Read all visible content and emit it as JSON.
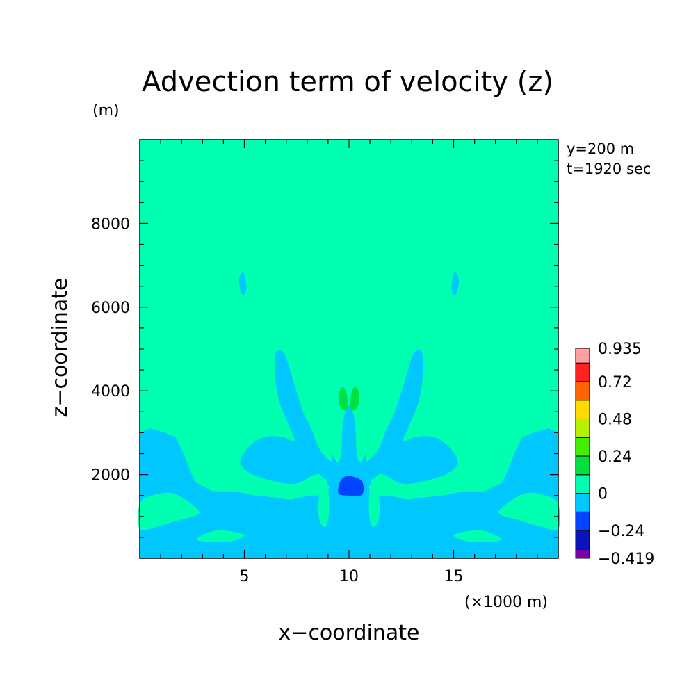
{
  "chart_data": {
    "type": "heatmap",
    "title": "Advection term of velocity (z)",
    "xlabel": "x−coordinate",
    "ylabel": "z−coordinate",
    "x_unit": "(×1000 m)",
    "y_unit": "(m)",
    "xlim": [
      0,
      20
    ],
    "ylim": [
      0,
      10000
    ],
    "x_ticks": [
      5,
      10,
      15
    ],
    "x_tick_labels": [
      "5",
      "10",
      "15"
    ],
    "y_ticks": [
      2000,
      4000,
      6000,
      8000
    ],
    "y_tick_labels": [
      "2000",
      "4000",
      "6000",
      "8000"
    ],
    "annotations": [
      "y=200 m",
      "t=1920 sec"
    ],
    "colorbar": {
      "levels": [
        -0.419,
        -0.36,
        -0.24,
        -0.12,
        0,
        0.12,
        0.24,
        0.36,
        0.48,
        0.6,
        0.72,
        0.84,
        0.935
      ],
      "colors": [
        "#7a00a8",
        "#0a14b8",
        "#0044ff",
        "#00c8ff",
        "#00ffb0",
        "#00e040",
        "#44ee00",
        "#b8f000",
        "#ffdc00",
        "#ff6400",
        "#ff2020",
        "#ffa0a0"
      ],
      "tick_labels": [
        "−0.419",
        "−0.24",
        "0",
        "0.24",
        "0.48",
        "0.72",
        "0.935"
      ],
      "tick_values": [
        -0.419,
        -0.24,
        0,
        0.24,
        0.48,
        0.72,
        0.935
      ]
    },
    "background_level_color": "#00ffb0",
    "regions": [
      {
        "name": "region-lower-band",
        "value_range": [
          -0.12,
          0
        ],
        "color": "#00c8ff",
        "points": [
          [
            0,
            0
          ],
          [
            20,
            0
          ],
          [
            20,
            3.0
          ],
          [
            19.5,
            3.1
          ],
          [
            18.8,
            3.0
          ],
          [
            18.3,
            2.9
          ],
          [
            17.9,
            2.5
          ],
          [
            17.6,
            2.1
          ],
          [
            17.3,
            1.8
          ],
          [
            16.5,
            1.6
          ],
          [
            15.5,
            1.6
          ],
          [
            14.5,
            1.5
          ],
          [
            13.5,
            1.45
          ],
          [
            12.8,
            1.4
          ],
          [
            11.9,
            1.5
          ],
          [
            11.3,
            1.5
          ],
          [
            10.9,
            1.7
          ],
          [
            10.8,
            2.5
          ],
          [
            10.5,
            2.2
          ],
          [
            10.2,
            2.2
          ],
          [
            9.5,
            2.2
          ],
          [
            9.2,
            2.5
          ],
          [
            9.1,
            1.7
          ],
          [
            8.7,
            1.5
          ],
          [
            8.1,
            1.5
          ],
          [
            7.2,
            1.4
          ],
          [
            6.5,
            1.45
          ],
          [
            5.5,
            1.5
          ],
          [
            4.5,
            1.6
          ],
          [
            3.5,
            1.6
          ],
          [
            2.7,
            1.8
          ],
          [
            2.4,
            2.1
          ],
          [
            2.1,
            2.5
          ],
          [
            1.7,
            2.9
          ],
          [
            1.2,
            3.0
          ],
          [
            0.5,
            3.1
          ],
          [
            0,
            3.0
          ]
        ]
      },
      {
        "name": "region-central-plume",
        "value_range": [
          -0.12,
          0
        ],
        "color": "#00c8ff",
        "points": [
          [
            6.5,
            4.9
          ],
          [
            6.9,
            4.9
          ],
          [
            7.3,
            4.3
          ],
          [
            7.8,
            3.5
          ],
          [
            8.2,
            3.1
          ],
          [
            8.6,
            2.6
          ],
          [
            9.2,
            2.3
          ],
          [
            9.6,
            2.4
          ],
          [
            9.7,
            3.2
          ],
          [
            9.9,
            3.6
          ],
          [
            10.1,
            3.6
          ],
          [
            10.3,
            3.2
          ],
          [
            10.4,
            2.4
          ],
          [
            10.8,
            2.3
          ],
          [
            11.4,
            2.6
          ],
          [
            11.8,
            3.1
          ],
          [
            12.2,
            3.5
          ],
          [
            12.7,
            4.3
          ],
          [
            13.1,
            4.9
          ],
          [
            13.5,
            4.9
          ],
          [
            13.5,
            4.2
          ],
          [
            13.3,
            3.7
          ],
          [
            12.9,
            3.2
          ],
          [
            12.6,
            2.8
          ],
          [
            13.2,
            2.9
          ],
          [
            14.0,
            2.9
          ],
          [
            14.7,
            2.7
          ],
          [
            15.2,
            2.3
          ],
          [
            14.6,
            2.0
          ],
          [
            13.2,
            1.8
          ],
          [
            12.4,
            1.8
          ],
          [
            11.4,
            2.0
          ],
          [
            10.6,
            1.4
          ],
          [
            10.2,
            1.2
          ],
          [
            9.8,
            1.2
          ],
          [
            9.4,
            1.4
          ],
          [
            8.6,
            2.0
          ],
          [
            7.6,
            1.8
          ],
          [
            6.8,
            1.8
          ],
          [
            5.4,
            2.0
          ],
          [
            4.8,
            2.3
          ],
          [
            5.3,
            2.7
          ],
          [
            6.0,
            2.9
          ],
          [
            6.8,
            2.9
          ],
          [
            7.4,
            2.8
          ],
          [
            7.1,
            3.2
          ],
          [
            6.7,
            3.7
          ],
          [
            6.5,
            4.2
          ]
        ]
      },
      {
        "name": "region-upper-left-spot",
        "value_range": [
          -0.12,
          0
        ],
        "color": "#00c8ff",
        "points": [
          [
            4.75,
            6.65
          ],
          [
            4.95,
            6.85
          ],
          [
            5.1,
            6.5
          ],
          [
            5.0,
            6.3
          ],
          [
            4.85,
            6.35
          ]
        ]
      },
      {
        "name": "region-upper-right-spot",
        "value_range": [
          -0.12,
          0
        ],
        "color": "#00c8ff",
        "points": [
          [
            15.25,
            6.65
          ],
          [
            15.05,
            6.85
          ],
          [
            14.9,
            6.5
          ],
          [
            15.0,
            6.3
          ],
          [
            15.15,
            6.35
          ]
        ]
      },
      {
        "name": "region-green-left",
        "value_range": [
          0.12,
          0.24
        ],
        "color": "#00e040",
        "points": [
          [
            9.5,
            3.9
          ],
          [
            9.7,
            4.1
          ],
          [
            9.9,
            3.9
          ],
          [
            9.9,
            3.55
          ],
          [
            9.6,
            3.6
          ]
        ]
      },
      {
        "name": "region-green-right",
        "value_range": [
          0.12,
          0.24
        ],
        "color": "#00e040",
        "points": [
          [
            10.5,
            3.9
          ],
          [
            10.3,
            4.1
          ],
          [
            10.1,
            3.9
          ],
          [
            10.1,
            3.55
          ],
          [
            10.4,
            3.6
          ]
        ]
      },
      {
        "name": "region-negative-core",
        "value_range": [
          -0.36,
          -0.24
        ],
        "color": "#0044ff",
        "points": [
          [
            9.55,
            1.8
          ],
          [
            9.8,
            1.95
          ],
          [
            10.2,
            1.95
          ],
          [
            10.6,
            1.85
          ],
          [
            10.7,
            1.65
          ],
          [
            10.55,
            1.5
          ],
          [
            9.9,
            1.5
          ],
          [
            9.5,
            1.55
          ]
        ]
      },
      {
        "name": "region-positive-left-band",
        "value_range": [
          0,
          0.12
        ],
        "color": "#00ffb0",
        "points": [
          [
            0,
            1.3
          ],
          [
            0.6,
            1.5
          ],
          [
            1.6,
            1.55
          ],
          [
            2.6,
            1.25
          ],
          [
            2.8,
            1.05
          ],
          [
            1.8,
            0.9
          ],
          [
            0.8,
            0.75
          ],
          [
            0,
            0.7
          ]
        ]
      },
      {
        "name": "region-positive-right-band",
        "value_range": [
          0,
          0.12
        ],
        "color": "#00ffb0",
        "points": [
          [
            20,
            1.3
          ],
          [
            19.4,
            1.5
          ],
          [
            18.4,
            1.55
          ],
          [
            17.4,
            1.25
          ],
          [
            17.2,
            1.05
          ],
          [
            18.2,
            0.9
          ],
          [
            19.2,
            0.75
          ],
          [
            20,
            0.7
          ]
        ]
      },
      {
        "name": "region-positive-left-lens",
        "value_range": [
          0,
          0.12
        ],
        "color": "#00ffb0",
        "points": [
          [
            2.7,
            0.45
          ],
          [
            3.5,
            0.65
          ],
          [
            4.3,
            0.65
          ],
          [
            5.0,
            0.55
          ],
          [
            4.5,
            0.42
          ],
          [
            3.6,
            0.38
          ]
        ]
      },
      {
        "name": "region-positive-right-lens",
        "value_range": [
          0,
          0.12
        ],
        "color": "#00ffb0",
        "points": [
          [
            17.3,
            0.45
          ],
          [
            16.5,
            0.65
          ],
          [
            15.7,
            0.65
          ],
          [
            15.0,
            0.55
          ],
          [
            15.5,
            0.42
          ],
          [
            16.4,
            0.38
          ]
        ]
      },
      {
        "name": "region-positive-inner-left",
        "value_range": [
          0,
          0.12
        ],
        "color": "#00ffb0",
        "points": [
          [
            8.6,
            1.6
          ],
          [
            8.9,
            1.9
          ],
          [
            9.05,
            1.4
          ],
          [
            9.0,
            0.9
          ],
          [
            8.8,
            0.75
          ],
          [
            8.55,
            1.0
          ]
        ]
      },
      {
        "name": "region-positive-inner-right",
        "value_range": [
          0,
          0.12
        ],
        "color": "#00ffb0",
        "points": [
          [
            11.4,
            1.6
          ],
          [
            11.1,
            1.9
          ],
          [
            10.95,
            1.4
          ],
          [
            11.0,
            0.9
          ],
          [
            11.2,
            0.75
          ],
          [
            11.45,
            1.0
          ]
        ]
      }
    ]
  }
}
